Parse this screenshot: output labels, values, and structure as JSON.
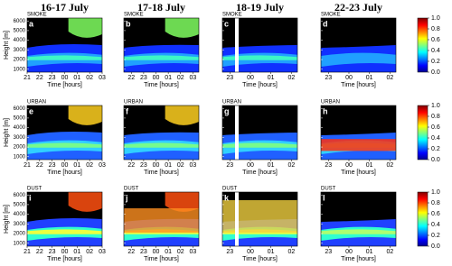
{
  "figure": {
    "columns": [
      {
        "title": "16-17 July",
        "xticks": [
          "21",
          "22",
          "23",
          "00",
          "01",
          "02",
          "03"
        ]
      },
      {
        "title": "17-18 July",
        "xticks": [
          "22",
          "23",
          "00",
          "01",
          "02",
          "03"
        ]
      },
      {
        "title": "18-19 July",
        "xticks": [
          "23",
          "00",
          "01",
          "02"
        ]
      },
      {
        "title": "22-23 July",
        "xticks": [
          "23",
          "00",
          "01",
          "02"
        ]
      }
    ],
    "rows": [
      {
        "label": "SMOKE"
      },
      {
        "label": "URBAN"
      },
      {
        "label": "DUST"
      }
    ],
    "panel_letters": [
      "a",
      "b",
      "c",
      "d",
      "e",
      "f",
      "g",
      "h",
      "i",
      "j",
      "k",
      "l"
    ],
    "y_label": "Height [m]",
    "x_label": "Time [hours]",
    "ylim": [
      700,
      6300
    ],
    "yticks": [
      1000,
      2000,
      3000,
      4000,
      5000,
      6000
    ],
    "colorbar": {
      "lim": [
        0,
        1
      ],
      "ticks": [
        {
          "value": 0,
          "label": "0.0"
        },
        {
          "value": 0.2,
          "label": "0.2"
        },
        {
          "value": 0.4,
          "label": "0.4"
        },
        {
          "value": 0.6,
          "label": "0.6"
        },
        {
          "value": 0.8,
          "label": "0.8"
        },
        {
          "value": 1,
          "label": "1.0"
        }
      ]
    }
  }
}
